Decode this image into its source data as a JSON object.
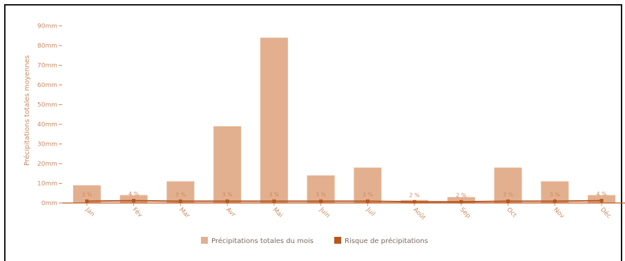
{
  "chart_data": {
    "type": "bar",
    "ylabel": "Précipitations totales moyennes",
    "ylim": [
      0,
      80
    ],
    "y_ticks": [
      "0mm",
      "10mm",
      "20mm",
      "30mm",
      "40mm",
      "50mm",
      "60mm",
      "70mm",
      "80mm",
      "90mm"
    ],
    "categories": [
      "Jan",
      "Fév",
      "Mar",
      "Avr",
      "Mai",
      "Juin",
      "Juil",
      "Août",
      "Sep",
      "Oct",
      "Nov",
      "Déc"
    ],
    "series": [
      {
        "name": "Précipitations totales du mois",
        "type": "bar",
        "color": "#e3b08f",
        "values": [
          9,
          4,
          11,
          39,
          84,
          14,
          18,
          1.5,
          3,
          18,
          11,
          4
        ]
      },
      {
        "name": "Risque de précipitations",
        "type": "line",
        "color": "#b8561d",
        "values": [
          3,
          4,
          3,
          3,
          3,
          3,
          3,
          2,
          2,
          3,
          3,
          4
        ],
        "labels": [
          "3 %",
          "4 %",
          "3 %",
          "3 %",
          "3 %",
          "3 %",
          "3 %",
          "2 %",
          "2 %",
          "3 %",
          "3 %",
          "4 %"
        ]
      }
    ],
    "legend_position": "bottom",
    "grid": false
  }
}
